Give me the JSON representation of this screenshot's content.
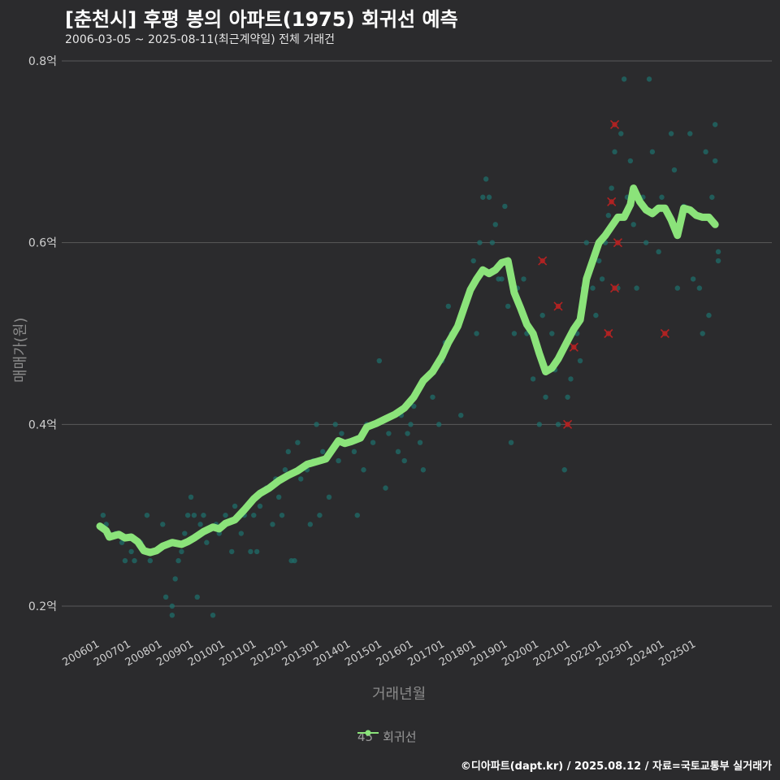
{
  "title": "[춘천시] 후평 봉의 아파트(1975) 회귀선 예측",
  "subtitle": "2006-03-05 ~ 2025-08-11(최근계약일) 전체 거래건",
  "credit": "©디아파트(dapt.kr) / 2025.08.12 / 자료=국토교통부 실거래가",
  "colors": {
    "background": "#2b2b2d",
    "grid": "#5a5a5a",
    "points": "#1f6e69",
    "regression": "#8be37a",
    "cancelled": "#b22222"
  },
  "chart_data": {
    "type": "scatter",
    "xlabel": "거래년월",
    "ylabel": "매매가(원)",
    "ylim": [
      0.165,
      0.83
    ],
    "xlim": [
      2005.5,
      2026.2
    ],
    "y_ticks": [
      {
        "value": 0.2,
        "label": "0.2억"
      },
      {
        "value": 0.4,
        "label": "0.4억"
      },
      {
        "value": 0.6,
        "label": "0.6억"
      },
      {
        "value": 0.8,
        "label": "0.8억"
      }
    ],
    "x_ticks": [
      {
        "value": 2006,
        "label": "200601"
      },
      {
        "value": 2007,
        "label": "200701"
      },
      {
        "value": 2008,
        "label": "200801"
      },
      {
        "value": 2009,
        "label": "200901"
      },
      {
        "value": 2010,
        "label": "201001"
      },
      {
        "value": 2011,
        "label": "201101"
      },
      {
        "value": 2012,
        "label": "201201"
      },
      {
        "value": 2013,
        "label": "201301"
      },
      {
        "value": 2014,
        "label": "201401"
      },
      {
        "value": 2015,
        "label": "201501"
      },
      {
        "value": 2016,
        "label": "201601"
      },
      {
        "value": 2017,
        "label": "201701"
      },
      {
        "value": 2018,
        "label": "201801"
      },
      {
        "value": 2019,
        "label": "201901"
      },
      {
        "value": 2020,
        "label": "202001"
      },
      {
        "value": 2021,
        "label": "202101"
      },
      {
        "value": 2022,
        "label": "202201"
      },
      {
        "value": 2023,
        "label": "202301"
      },
      {
        "value": 2024,
        "label": "202401"
      },
      {
        "value": 2025,
        "label": "202501"
      }
    ],
    "legend": [
      {
        "name": "45",
        "color": "#1f6e69"
      },
      {
        "name": "회귀선",
        "color": "#8be37a"
      }
    ],
    "series": [
      {
        "name": "45",
        "points": [
          [
            2006.1,
            0.3
          ],
          [
            2006.2,
            0.29
          ],
          [
            2006.5,
            0.28
          ],
          [
            2006.7,
            0.27
          ],
          [
            2006.8,
            0.25
          ],
          [
            2007.0,
            0.26
          ],
          [
            2007.1,
            0.25
          ],
          [
            2007.3,
            0.27
          ],
          [
            2007.5,
            0.3
          ],
          [
            2007.6,
            0.25
          ],
          [
            2007.8,
            0.26
          ],
          [
            2008.0,
            0.29
          ],
          [
            2008.1,
            0.21
          ],
          [
            2008.2,
            0.27
          ],
          [
            2008.3,
            0.2
          ],
          [
            2008.3,
            0.19
          ],
          [
            2008.4,
            0.23
          ],
          [
            2008.5,
            0.25
          ],
          [
            2008.6,
            0.26
          ],
          [
            2008.7,
            0.28
          ],
          [
            2008.8,
            0.3
          ],
          [
            2008.9,
            0.32
          ],
          [
            2009.0,
            0.3
          ],
          [
            2009.1,
            0.21
          ],
          [
            2009.2,
            0.29
          ],
          [
            2009.3,
            0.3
          ],
          [
            2009.4,
            0.27
          ],
          [
            2009.6,
            0.19
          ],
          [
            2009.7,
            0.29
          ],
          [
            2009.8,
            0.28
          ],
          [
            2010.0,
            0.3
          ],
          [
            2010.2,
            0.26
          ],
          [
            2010.3,
            0.31
          ],
          [
            2010.5,
            0.28
          ],
          [
            2010.6,
            0.3
          ],
          [
            2010.8,
            0.26
          ],
          [
            2010.9,
            0.3
          ],
          [
            2011.0,
            0.26
          ],
          [
            2011.1,
            0.31
          ],
          [
            2011.3,
            0.33
          ],
          [
            2011.5,
            0.29
          ],
          [
            2011.6,
            0.34
          ],
          [
            2011.7,
            0.32
          ],
          [
            2011.8,
            0.3
          ],
          [
            2011.9,
            0.35
          ],
          [
            2012.0,
            0.37
          ],
          [
            2012.1,
            0.25
          ],
          [
            2012.2,
            0.25
          ],
          [
            2012.3,
            0.38
          ],
          [
            2012.4,
            0.34
          ],
          [
            2012.6,
            0.35
          ],
          [
            2012.7,
            0.29
          ],
          [
            2012.8,
            0.36
          ],
          [
            2012.9,
            0.4
          ],
          [
            2013.0,
            0.3
          ],
          [
            2013.1,
            0.37
          ],
          [
            2013.3,
            0.32
          ],
          [
            2013.5,
            0.4
          ],
          [
            2013.6,
            0.36
          ],
          [
            2013.7,
            0.39
          ],
          [
            2013.9,
            0.38
          ],
          [
            2014.1,
            0.37
          ],
          [
            2014.2,
            0.3
          ],
          [
            2014.4,
            0.35
          ],
          [
            2014.5,
            0.4
          ],
          [
            2014.7,
            0.38
          ],
          [
            2014.9,
            0.47
          ],
          [
            2015.1,
            0.33
          ],
          [
            2015.2,
            0.39
          ],
          [
            2015.3,
            0.41
          ],
          [
            2015.5,
            0.37
          ],
          [
            2015.6,
            0.41
          ],
          [
            2015.7,
            0.36
          ],
          [
            2015.8,
            0.39
          ],
          [
            2015.9,
            0.4
          ],
          [
            2016.0,
            0.42
          ],
          [
            2016.2,
            0.38
          ],
          [
            2016.3,
            0.35
          ],
          [
            2016.4,
            0.45
          ],
          [
            2016.6,
            0.43
          ],
          [
            2016.8,
            0.4
          ],
          [
            2016.9,
            0.47
          ],
          [
            2017.0,
            0.49
          ],
          [
            2017.1,
            0.53
          ],
          [
            2017.2,
            0.5
          ],
          [
            2017.4,
            0.51
          ],
          [
            2017.5,
            0.41
          ],
          [
            2017.7,
            0.54
          ],
          [
            2017.8,
            0.55
          ],
          [
            2017.9,
            0.58
          ],
          [
            2018.0,
            0.5
          ],
          [
            2018.1,
            0.6
          ],
          [
            2018.2,
            0.65
          ],
          [
            2018.3,
            0.67
          ],
          [
            2018.4,
            0.65
          ],
          [
            2018.5,
            0.6
          ],
          [
            2018.6,
            0.62
          ],
          [
            2018.7,
            0.56
          ],
          [
            2018.8,
            0.56
          ],
          [
            2018.9,
            0.64
          ],
          [
            2019.0,
            0.53
          ],
          [
            2019.1,
            0.38
          ],
          [
            2019.2,
            0.5
          ],
          [
            2019.3,
            0.55
          ],
          [
            2019.5,
            0.56
          ],
          [
            2019.6,
            0.5
          ],
          [
            2019.8,
            0.45
          ],
          [
            2020.0,
            0.4
          ],
          [
            2020.1,
            0.52
          ],
          [
            2020.2,
            0.43
          ],
          [
            2020.4,
            0.5
          ],
          [
            2020.5,
            0.46
          ],
          [
            2020.6,
            0.4
          ],
          [
            2020.8,
            0.35
          ],
          [
            2020.9,
            0.43
          ],
          [
            2021.0,
            0.45
          ],
          [
            2021.2,
            0.5
          ],
          [
            2021.3,
            0.47
          ],
          [
            2021.4,
            0.55
          ],
          [
            2021.5,
            0.6
          ],
          [
            2021.6,
            0.57
          ],
          [
            2021.7,
            0.55
          ],
          [
            2021.8,
            0.52
          ],
          [
            2021.9,
            0.58
          ],
          [
            2022.0,
            0.56
          ],
          [
            2022.1,
            0.6
          ],
          [
            2022.2,
            0.63
          ],
          [
            2022.3,
            0.66
          ],
          [
            2022.4,
            0.7
          ],
          [
            2022.5,
            0.55
          ],
          [
            2022.6,
            0.72
          ],
          [
            2022.7,
            0.78
          ],
          [
            2022.8,
            0.65
          ],
          [
            2022.9,
            0.69
          ],
          [
            2023.0,
            0.62
          ],
          [
            2023.1,
            0.55
          ],
          [
            2023.3,
            0.65
          ],
          [
            2023.4,
            0.6
          ],
          [
            2023.5,
            0.78
          ],
          [
            2023.6,
            0.7
          ],
          [
            2023.8,
            0.59
          ],
          [
            2023.9,
            0.65
          ],
          [
            2024.2,
            0.72
          ],
          [
            2024.3,
            0.68
          ],
          [
            2024.4,
            0.55
          ],
          [
            2024.6,
            0.64
          ],
          [
            2024.8,
            0.72
          ],
          [
            2024.9,
            0.56
          ],
          [
            2025.1,
            0.55
          ],
          [
            2025.2,
            0.5
          ],
          [
            2025.3,
            0.7
          ],
          [
            2025.4,
            0.52
          ],
          [
            2025.5,
            0.65
          ],
          [
            2025.6,
            0.73
          ],
          [
            2025.6,
            0.69
          ],
          [
            2025.7,
            0.58
          ],
          [
            2025.7,
            0.59
          ]
        ]
      },
      {
        "name": "회귀선",
        "points": [
          [
            2006.0,
            0.288
          ],
          [
            2006.2,
            0.283
          ],
          [
            2006.3,
            0.276
          ],
          [
            2006.6,
            0.279
          ],
          [
            2006.8,
            0.275
          ],
          [
            2007.0,
            0.276
          ],
          [
            2007.2,
            0.271
          ],
          [
            2007.4,
            0.261
          ],
          [
            2007.6,
            0.259
          ],
          [
            2007.8,
            0.261
          ],
          [
            2008.0,
            0.266
          ],
          [
            2008.3,
            0.27
          ],
          [
            2008.6,
            0.268
          ],
          [
            2008.8,
            0.271
          ],
          [
            2009.0,
            0.275
          ],
          [
            2009.3,
            0.282
          ],
          [
            2009.6,
            0.287
          ],
          [
            2009.8,
            0.285
          ],
          [
            2010.0,
            0.291
          ],
          [
            2010.3,
            0.295
          ],
          [
            2010.6,
            0.306
          ],
          [
            2010.9,
            0.318
          ],
          [
            2011.1,
            0.324
          ],
          [
            2011.4,
            0.33
          ],
          [
            2011.7,
            0.338
          ],
          [
            2012.0,
            0.344
          ],
          [
            2012.3,
            0.349
          ],
          [
            2012.6,
            0.356
          ],
          [
            2012.9,
            0.359
          ],
          [
            2013.2,
            0.362
          ],
          [
            2013.4,
            0.372
          ],
          [
            2013.6,
            0.382
          ],
          [
            2013.8,
            0.379
          ],
          [
            2014.0,
            0.381
          ],
          [
            2014.3,
            0.385
          ],
          [
            2014.5,
            0.397
          ],
          [
            2014.8,
            0.401
          ],
          [
            2015.1,
            0.406
          ],
          [
            2015.4,
            0.411
          ],
          [
            2015.7,
            0.418
          ],
          [
            2016.0,
            0.43
          ],
          [
            2016.3,
            0.448
          ],
          [
            2016.6,
            0.458
          ],
          [
            2016.9,
            0.475
          ],
          [
            2017.1,
            0.49
          ],
          [
            2017.4,
            0.508
          ],
          [
            2017.6,
            0.528
          ],
          [
            2017.8,
            0.548
          ],
          [
            2018.0,
            0.56
          ],
          [
            2018.2,
            0.57
          ],
          [
            2018.4,
            0.566
          ],
          [
            2018.6,
            0.57
          ],
          [
            2018.8,
            0.578
          ],
          [
            2019.0,
            0.58
          ],
          [
            2019.2,
            0.545
          ],
          [
            2019.4,
            0.528
          ],
          [
            2019.6,
            0.51
          ],
          [
            2019.8,
            0.5
          ],
          [
            2020.0,
            0.478
          ],
          [
            2020.2,
            0.458
          ],
          [
            2020.4,
            0.462
          ],
          [
            2020.6,
            0.472
          ],
          [
            2020.9,
            0.492
          ],
          [
            2021.1,
            0.505
          ],
          [
            2021.3,
            0.515
          ],
          [
            2021.5,
            0.56
          ],
          [
            2021.7,
            0.58
          ],
          [
            2021.9,
            0.6
          ],
          [
            2022.1,
            0.608
          ],
          [
            2022.3,
            0.618
          ],
          [
            2022.5,
            0.628
          ],
          [
            2022.7,
            0.628
          ],
          [
            2022.9,
            0.642
          ],
          [
            2023.0,
            0.66
          ],
          [
            2023.2,
            0.645
          ],
          [
            2023.4,
            0.636
          ],
          [
            2023.6,
            0.632
          ],
          [
            2023.8,
            0.638
          ],
          [
            2024.0,
            0.638
          ],
          [
            2024.2,
            0.625
          ],
          [
            2024.4,
            0.608
          ],
          [
            2024.6,
            0.638
          ],
          [
            2024.8,
            0.636
          ],
          [
            2025.0,
            0.63
          ],
          [
            2025.2,
            0.628
          ],
          [
            2025.4,
            0.628
          ],
          [
            2025.6,
            0.62
          ]
        ]
      }
    ],
    "cancelled_points": [
      [
        2020.1,
        0.58
      ],
      [
        2020.6,
        0.53
      ],
      [
        2020.9,
        0.4
      ],
      [
        2021.1,
        0.485
      ],
      [
        2022.3,
        0.645
      ],
      [
        2022.4,
        0.73
      ],
      [
        2022.5,
        0.6
      ],
      [
        2022.4,
        0.55
      ],
      [
        2022.2,
        0.5
      ],
      [
        2024.0,
        0.5
      ]
    ]
  }
}
